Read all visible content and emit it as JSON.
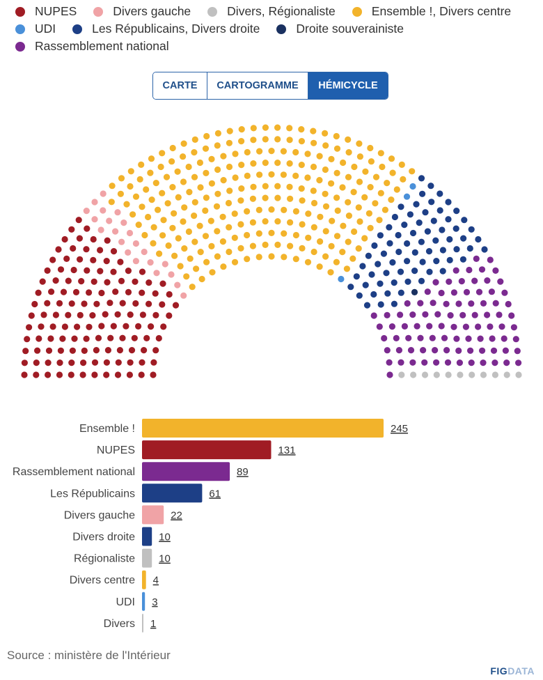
{
  "legend": [
    {
      "label": "NUPES",
      "color": "#a01c24"
    },
    {
      "label": "Divers gauche",
      "color": "#f0a3a6"
    },
    {
      "label": "Divers, Régionaliste",
      "color": "#c0c0c0"
    },
    {
      "label": "Ensemble !, Divers centre",
      "color": "#f2b32b"
    },
    {
      "label": "UDI",
      "color": "#4a90d9"
    },
    {
      "label": "Les Républicains, Divers droite",
      "color": "#1d3f86"
    },
    {
      "label": "Droite souverainiste",
      "color": "#1a3160"
    },
    {
      "label": "Rassemblement national",
      "color": "#7b2a90"
    }
  ],
  "tabs": {
    "carte": "CARTE",
    "cartogramme": "CARTOGRAMME",
    "hemicycle": "HÉMICYCLE",
    "active": "hemicycle"
  },
  "chart_data": [
    {
      "type": "hemicycle",
      "total_seats": 577,
      "seats": [
        {
          "group": "NUPES",
          "count": 131,
          "color": "#a01c24"
        },
        {
          "group": "Divers gauche",
          "count": 22,
          "color": "#f0a3a6"
        },
        {
          "group": "Ensemble !, Divers centre",
          "count": 249,
          "color": "#f2b32b"
        },
        {
          "group": "UDI",
          "count": 3,
          "color": "#4a90d9"
        },
        {
          "group": "Les Républicains, Divers droite",
          "count": 71,
          "color": "#1d3f86"
        },
        {
          "group": "Droite souverainiste",
          "count": 1,
          "color": "#1a3160"
        },
        {
          "group": "Rassemblement national",
          "count": 89,
          "color": "#7b2a90"
        },
        {
          "group": "Divers, Régionaliste",
          "count": 11,
          "color": "#c0c0c0"
        }
      ]
    },
    {
      "type": "bar",
      "orientation": "horizontal",
      "categories": [
        "Ensemble !",
        "NUPES",
        "Rassemblement national",
        "Les Républicains",
        "Divers gauche",
        "Divers droite",
        "Régionaliste",
        "Divers centre",
        "UDI",
        "Divers"
      ],
      "values": [
        245,
        131,
        89,
        61,
        22,
        10,
        10,
        4,
        3,
        1
      ],
      "colors": [
        "#f2b32b",
        "#a01c24",
        "#7b2a90",
        "#1d3f86",
        "#f0a3a6",
        "#1d3f86",
        "#c0c0c0",
        "#f2b32b",
        "#4a90d9",
        "#c0c0c0"
      ],
      "xlim": [
        0,
        245
      ]
    }
  ],
  "source": "Source : ministère de l'Intérieur",
  "brand": {
    "main": "FIG",
    "accent": "DATA"
  }
}
